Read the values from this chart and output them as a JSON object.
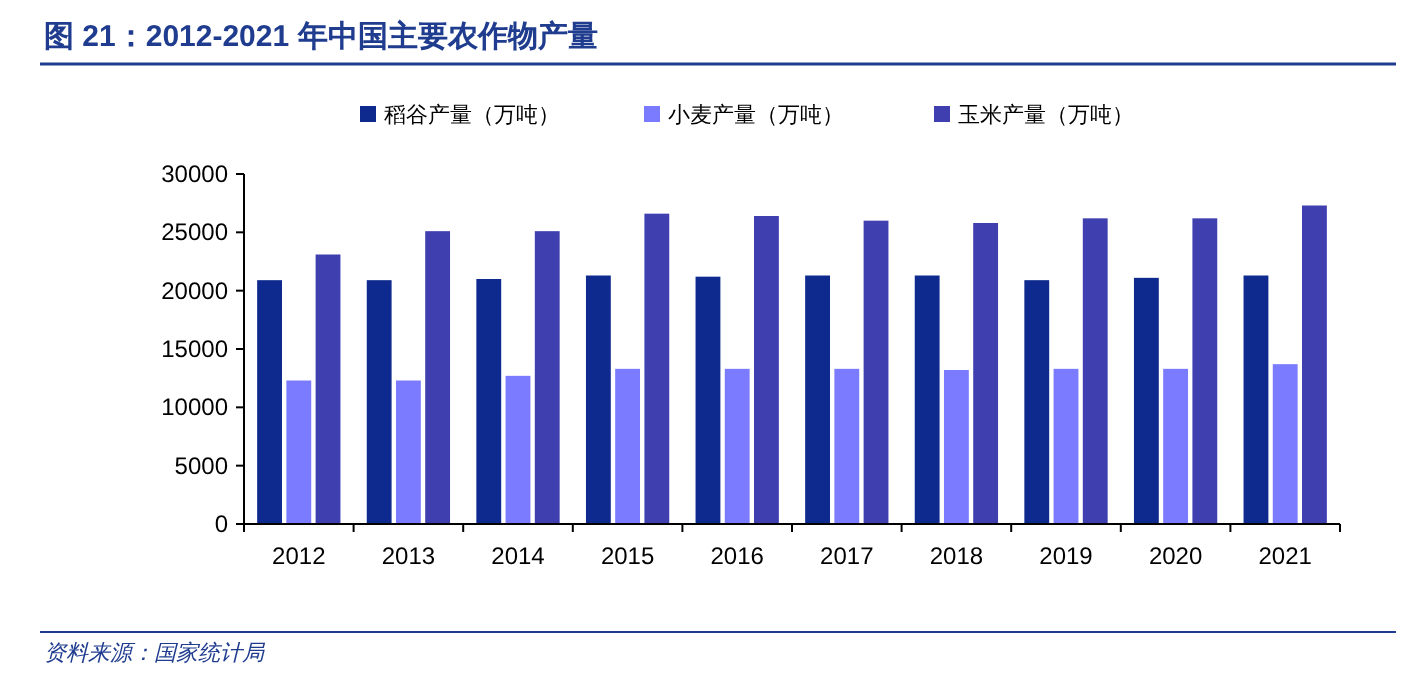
{
  "chart_data": {
    "type": "bar",
    "title": "图 21：2012-2021 年中国主要农作物产量",
    "categories": [
      "2012",
      "2013",
      "2014",
      "2015",
      "2016",
      "2017",
      "2018",
      "2019",
      "2020",
      "2021"
    ],
    "series": [
      {
        "name": "稻谷产量（万吨）",
        "color": "#0e2a8e",
        "values": [
          20900,
          20900,
          21000,
          21300,
          21200,
          21300,
          21300,
          20900,
          21100,
          21300
        ]
      },
      {
        "name": "小麦产量（万吨）",
        "color": "#7b7bff",
        "values": [
          12300,
          12300,
          12700,
          13300,
          13300,
          13300,
          13200,
          13300,
          13300,
          13700
        ]
      },
      {
        "name": "玉米产量（万吨）",
        "color": "#3f3fb0",
        "values": [
          23100,
          25100,
          25100,
          26600,
          26400,
          26000,
          25800,
          26200,
          26200,
          27300
        ]
      }
    ],
    "ylim": [
      0,
      30000
    ],
    "yticks": [
      0,
      5000,
      10000,
      15000,
      20000,
      25000,
      30000
    ],
    "grid": false,
    "legend": "top",
    "annotations": [
      "资料来源：国家统计局"
    ]
  }
}
